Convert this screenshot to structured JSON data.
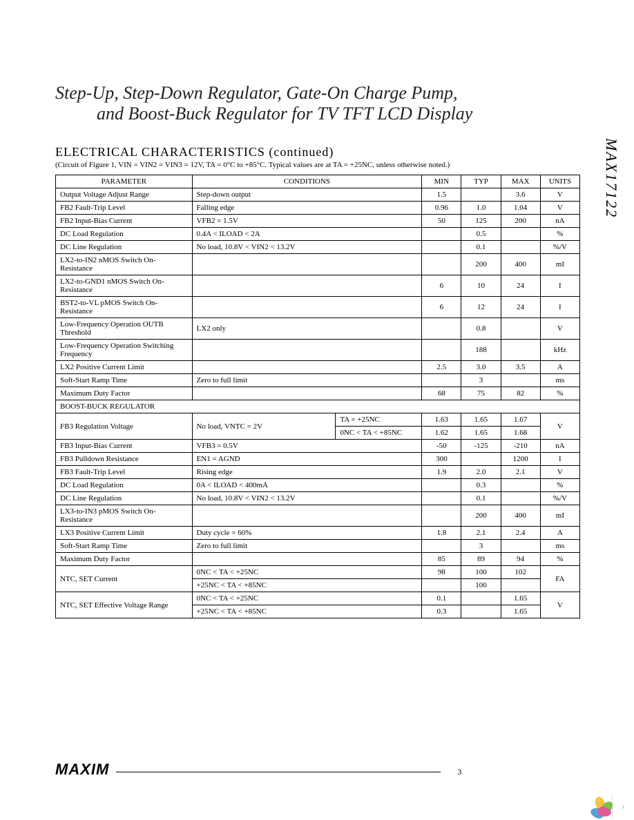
{
  "part_number": "MAX17122",
  "title": {
    "line1": "Step-Up, Step-Down Regulator, Gate-On Charge Pump,",
    "line2": "and Boost-Buck Regulator for TV TFT LCD Display"
  },
  "section_header": "ELECTRICAL CHARACTERISTICS (continued)",
  "circuit_note": "(Circuit of Figure 1, VIN = VIN2 = VIN3 = 12V, TA = 0°C to +85°C. Typical values are at TA = +25NC, unless otherwise noted.)",
  "headers": {
    "parameter": "PARAMETER",
    "conditions": "CONDITIONS",
    "min": "MIN",
    "typ": "TYP",
    "max": "MAX",
    "units": "UNITS"
  },
  "rows": [
    {
      "param": "Output Voltage Adjust Range",
      "cond": "Step-down output",
      "min": "1.5",
      "typ": "",
      "max": "3.6",
      "unit": "V"
    },
    {
      "param": "FB2 Fault-Trip Level",
      "cond": "Falling edge",
      "min": "0.96",
      "typ": "1.0",
      "max": "1.04",
      "unit": "V"
    },
    {
      "param": "FB2 Input-Bias Current",
      "cond": "VFB2 = 1.5V",
      "min": "50",
      "typ": "125",
      "max": "200",
      "unit": "nA"
    },
    {
      "param": "DC Load Regulation",
      "cond": "0.4A < ILOAD < 2A",
      "min": "",
      "typ": "0.5",
      "max": "",
      "unit": "%"
    },
    {
      "param": "DC Line Regulation",
      "cond": "No load, 10.8V < VIN2 < 13.2V",
      "min": "",
      "typ": "0.1",
      "max": "",
      "unit": "%/V"
    },
    {
      "param": "LX2-to-IN2 nMOS Switch On-Resistance",
      "cond": "",
      "min": "",
      "typ": "200",
      "max": "400",
      "unit": "mI"
    },
    {
      "param": "LX2-to-GND1 nMOS Switch On-Resistance",
      "cond": "",
      "min": "6",
      "typ": "10",
      "max": "24",
      "unit": "I"
    },
    {
      "param": "BST2-to-VL pMOS Switch On-Resistance",
      "cond": "",
      "min": "6",
      "typ": "12",
      "max": "24",
      "unit": "I"
    },
    {
      "param": "Low-Frequency Operation OUTB Threshold",
      "cond": "LX2 only",
      "min": "",
      "typ": "0.8",
      "max": "",
      "unit": "V"
    },
    {
      "param": "Low-Frequency Operation Switching Frequency",
      "cond": "",
      "min": "",
      "typ": "188",
      "max": "",
      "unit": "kHz"
    },
    {
      "param": "LX2 Positive Current Limit",
      "cond": "",
      "min": "2.5",
      "typ": "3.0",
      "max": "3.5",
      "unit": "A"
    },
    {
      "param": "Soft-Start Ramp Time",
      "cond": "Zero to full limit",
      "min": "",
      "typ": "3",
      "max": "",
      "unit": "ms"
    },
    {
      "param": "Maximum Duty Factor",
      "cond": "",
      "min": "68",
      "typ": "75",
      "max": "82",
      "unit": "%"
    }
  ],
  "section2_label": "BOOST-BUCK REGULATOR",
  "fb3": {
    "param": "FB3 Regulation Voltage",
    "cond_shared": "No load, VNTC = 2V",
    "sub1": {
      "cond": "TA = +25NC",
      "min": "1.63",
      "typ": "1.65",
      "max": "1.67"
    },
    "sub2": {
      "cond": "0NC < TA < +85NC",
      "min": "1.62",
      "typ": "1.65",
      "max": "1.68"
    },
    "unit": "V"
  },
  "rows2": [
    {
      "param": "FB3 Input-Bias Current",
      "cond": "VFB3 = 0.5V",
      "min": "-50",
      "typ": "-125",
      "max": "-210",
      "unit": "nA"
    },
    {
      "param": "FB3 Pulldown Resistance",
      "cond": "EN1 = AGND",
      "min": "300",
      "typ": "",
      "max": "1200",
      "unit": "I"
    },
    {
      "param": "FB3 Fault-Trip Level",
      "cond": "Rising edge",
      "min": "1.9",
      "typ": "2.0",
      "max": "2.1",
      "unit": "V"
    },
    {
      "param": "DC Load Regulation",
      "cond": "0A < ILOAD < 400mA",
      "min": "",
      "typ": "0.3",
      "max": "",
      "unit": "%"
    },
    {
      "param": "DC Line Regulation",
      "cond": "No load, 10.8V < VIN2 < 13.2V",
      "min": "",
      "typ": "0.1",
      "max": "",
      "unit": "%/V"
    },
    {
      "param": "LX3-to-IN3 pMOS Switch On-Resistance",
      "cond": "",
      "min": "",
      "typ": "200",
      "max": "400",
      "unit": "mI"
    },
    {
      "param": "LX3 Positive Current Limit",
      "cond": "Duty cycle = 60%",
      "min": "1.8",
      "typ": "2.1",
      "max": "2.4",
      "unit": "A"
    },
    {
      "param": "Soft-Start Ramp Time",
      "cond": "Zero to full limit",
      "min": "",
      "typ": "3",
      "max": "",
      "unit": "ms"
    },
    {
      "param": "Maximum Duty Factor",
      "cond": "",
      "min": "85",
      "typ": "89",
      "max": "94",
      "unit": "%"
    }
  ],
  "ntc_current": {
    "param": "NTC, SET Current",
    "sub1": {
      "cond": "0NC < TA < +25NC",
      "min": "98",
      "typ": "100",
      "max": "102"
    },
    "sub2": {
      "cond": "+25NC < TA < +85NC",
      "min": "",
      "typ": "100",
      "max": ""
    },
    "unit": "FA"
  },
  "ntc_voltage": {
    "param": "NTC, SET Effective Voltage Range",
    "sub1": {
      "cond": "0NC < TA < +25NC",
      "min": "0.1",
      "typ": "",
      "max": "1.65"
    },
    "sub2": {
      "cond": "+25NC < TA < +85NC",
      "min": "0.3",
      "typ": "",
      "max": "1.65"
    },
    "unit": "V"
  },
  "footer": {
    "logo": "MAXIM",
    "page": "3"
  },
  "style": {
    "page_bg": "#ffffff",
    "text_color": "#000000",
    "border_color": "#000000",
    "title_fontsize": 26,
    "body_fontsize": 11
  }
}
